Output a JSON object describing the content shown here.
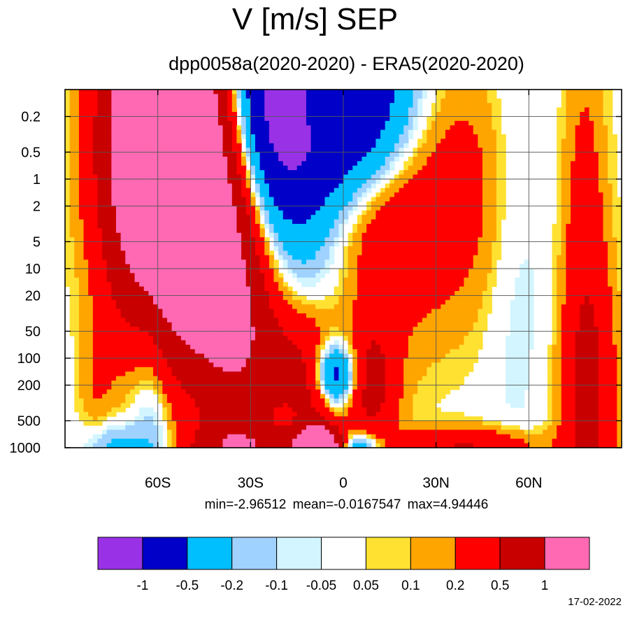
{
  "chart_data": {
    "type": "heatmap",
    "title": "V [m/s] SEP",
    "subtitle": "dpp0058a(2020-2020) - ERA5(2020-2020)",
    "x_ticks": [
      {
        "value": -60,
        "label": "60S"
      },
      {
        "value": -30,
        "label": "30S"
      },
      {
        "value": 0,
        "label": "0"
      },
      {
        "value": 30,
        "label": "30N"
      },
      {
        "value": 60,
        "label": "60N"
      }
    ],
    "xlim": [
      -90,
      90
    ],
    "y_scale": "log",
    "y_inverted": true,
    "ylim": [
      0.1,
      1000
    ],
    "y_ticks": [
      {
        "value": 0.2,
        "label": "0.2"
      },
      {
        "value": 0.5,
        "label": "0.5"
      },
      {
        "value": 1,
        "label": "1"
      },
      {
        "value": 2,
        "label": "2"
      },
      {
        "value": 5,
        "label": "5"
      },
      {
        "value": 10,
        "label": "10"
      },
      {
        "value": 20,
        "label": "20"
      },
      {
        "value": 50,
        "label": "50"
      },
      {
        "value": 100,
        "label": "100"
      },
      {
        "value": 200,
        "label": "200"
      },
      {
        "value": 500,
        "label": "500"
      },
      {
        "value": 1000,
        "label": "1000"
      }
    ],
    "grid": true,
    "stats": "min=-2.96512   mean=-0.0167547   max=4.94446",
    "colorbar": {
      "colors": [
        "#9932e6",
        "#0000c8",
        "#00bfff",
        "#a0d2ff",
        "#d2f5ff",
        "#ffffff",
        "#ffe132",
        "#ffa500",
        "#ff0000",
        "#c80000",
        "#ff69b4"
      ],
      "levels": [
        "-1",
        "-0.5",
        "-0.2",
        "-0.1",
        "-0.05",
        "0.05",
        "0.1",
        "0.2",
        "0.5",
        "1"
      ]
    },
    "field": {
      "background": 0,
      "features": [
        {
          "lat": -58,
          "p": 0.35,
          "sl": 12,
          "sp": 1.3,
          "v": 2.5
        },
        {
          "lat": -50,
          "p": 1.5,
          "sl": 14,
          "sp": 1.4,
          "v": 0.8
        },
        {
          "lat": -38,
          "p": 10,
          "sl": 9,
          "sp": 2.4,
          "v": 0.7
        },
        {
          "lat": -32,
          "p": 40,
          "sl": 9,
          "sp": 1.4,
          "v": 0.35
        },
        {
          "lat": -24,
          "p": 100,
          "sl": 11,
          "sp": 0.6,
          "v": 0.2
        },
        {
          "lat": -28,
          "p": 0.15,
          "sl": 16,
          "sp": 1.1,
          "v": -1.2
        },
        {
          "lat": -5,
          "p": 0.3,
          "sl": 15,
          "sp": 1.2,
          "v": -1.1
        },
        {
          "lat": 12,
          "p": 0.15,
          "sl": 12,
          "sp": 0.7,
          "v": -0.4
        },
        {
          "lat": 18,
          "p": 1.5,
          "sl": 28,
          "sp": 1.1,
          "v": 0.45
        },
        {
          "lat": 2,
          "p": 2.8,
          "sl": 14,
          "sp": 0.6,
          "v": 0.5
        },
        {
          "lat": -8,
          "p": 0.12,
          "sl": 8,
          "sp": 0.5,
          "v": 0.6
        },
        {
          "lat": -62,
          "p": 30,
          "sl": 5,
          "sp": 5,
          "v": -0.25
        },
        {
          "lat": -62,
          "p": 400,
          "sl": 6,
          "sp": 1.8,
          "v": -0.1
        },
        {
          "lat": -40,
          "p": 250,
          "sl": 9,
          "sp": 0.45,
          "v": -0.3
        },
        {
          "lat": 8,
          "p": 4,
          "sl": 22,
          "sp": 0.7,
          "v": -0.07
        },
        {
          "lat": 55,
          "p": 3,
          "sl": 7,
          "sp": 1.6,
          "v": -0.15
        },
        {
          "lat": 65,
          "p": 12,
          "sl": 8,
          "sp": 2.2,
          "v": -0.07
        },
        {
          "lat": 78,
          "p": 7,
          "sl": 5,
          "sp": 2.0,
          "v": 0.25
        },
        {
          "lat": 80,
          "p": 300,
          "sl": 6,
          "sp": 1.1,
          "v": 0.4
        },
        {
          "lat": 72,
          "p": 300,
          "sl": 9,
          "sp": 0.8,
          "v": 0.1
        },
        {
          "lat": -10,
          "p": 80,
          "sl": 12,
          "sp": 0.5,
          "v": 0.15
        },
        {
          "lat": 12,
          "p": 60,
          "sl": 9,
          "sp": 0.9,
          "v": 0.1
        },
        {
          "lat": -8,
          "p": 150,
          "sl": 9,
          "sp": 0.4,
          "v": 0.45
        },
        {
          "lat": 10,
          "p": 200,
          "sl": 5,
          "sp": 0.5,
          "v": 0.45
        },
        {
          "lat": -3,
          "p": 200,
          "sl": 5,
          "sp": 0.32,
          "v": -1.4
        },
        {
          "lat": -4,
          "p": 380,
          "sl": 6,
          "sp": 0.25,
          "v": 0.9
        },
        {
          "lat": -4,
          "p": 550,
          "sl": 5,
          "sp": 0.2,
          "v": -0.25
        },
        {
          "lat": -8,
          "p": 980,
          "sl": 5,
          "sp": 0.15,
          "v": 2.2
        },
        {
          "lat": -30,
          "p": 980,
          "sl": 12,
          "sp": 0.15,
          "v": 0.5
        },
        {
          "lat": 40,
          "p": 980,
          "sl": 16,
          "sp": 0.15,
          "v": 0.5
        },
        {
          "lat": -80,
          "p": 230,
          "sl": 4,
          "sp": 0.5,
          "v": 0.15
        },
        {
          "lat": -75,
          "p": 980,
          "sl": 6,
          "sp": 0.2,
          "v": -0.3
        },
        {
          "lat": 5,
          "p": 980,
          "sl": 5,
          "sp": 0.12,
          "v": -0.6
        }
      ]
    }
  }
}
